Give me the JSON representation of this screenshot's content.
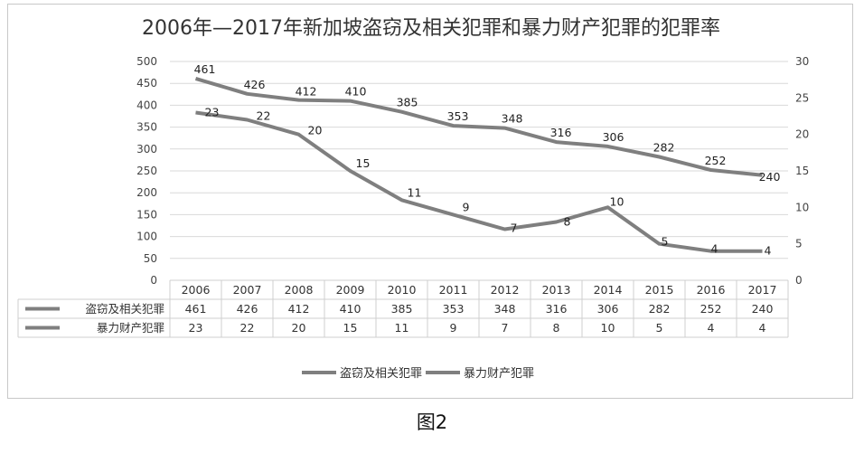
{
  "chart_data": {
    "type": "line",
    "title": "2006年—2017年新加坡盗窃及相关犯罪和暴力财产犯罪的犯罪率",
    "categories": [
      "2006",
      "2007",
      "2008",
      "2009",
      "2010",
      "2011",
      "2012",
      "2013",
      "2014",
      "2015",
      "2016",
      "2017"
    ],
    "series": [
      {
        "name": "盗窃及相关犯罪",
        "axis": "left",
        "values": [
          461,
          426,
          412,
          410,
          385,
          353,
          348,
          316,
          306,
          282,
          252,
          240
        ]
      },
      {
        "name": "暴力财产犯罪",
        "axis": "right",
        "values": [
          23,
          22,
          20,
          15,
          11,
          9,
          7,
          8,
          10,
          5,
          4,
          4
        ]
      }
    ],
    "ylim_left": [
      0,
      500
    ],
    "yticks_left": [
      0,
      50,
      100,
      150,
      200,
      250,
      300,
      350,
      400,
      450,
      500
    ],
    "ylim_right": [
      0,
      30
    ],
    "yticks_right": [
      0,
      5,
      10,
      15,
      20,
      25,
      30
    ],
    "grid": true,
    "data_table": true,
    "legend_position": "bottom",
    "line_color": "#7f7f7f"
  },
  "caption": "图2"
}
